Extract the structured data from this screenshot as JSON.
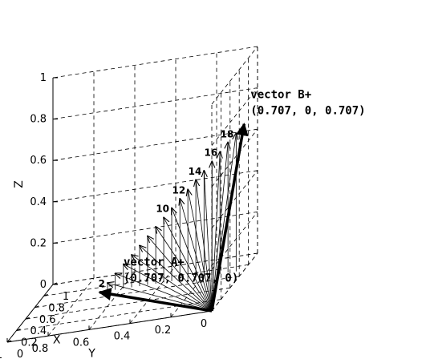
{
  "chart_data": {
    "type": "3d-vector",
    "title": "",
    "axes": {
      "x": {
        "label": "X",
        "range": [
          0,
          1
        ],
        "ticks": [
          "0",
          "0.2",
          "0.4",
          "0.6",
          "0.8",
          "1"
        ],
        "reversed": true
      },
      "y": {
        "label": "Y",
        "range": [
          0,
          1
        ],
        "ticks": [
          "0",
          "0.2",
          "0.4",
          "0.6",
          "0.8",
          "1"
        ]
      },
      "z": {
        "label": "Z",
        "range": [
          0,
          1
        ],
        "ticks": [
          "0",
          "0.2",
          "0.4",
          "0.6",
          "0.8",
          "1"
        ]
      }
    },
    "grid": true,
    "origin": [
      0,
      0,
      0
    ],
    "vectors": [
      {
        "name": "vector A+",
        "label": "(0.707, 0.707, 0)",
        "components": [
          0.707,
          0.707,
          0
        ]
      },
      {
        "name": "vector B+",
        "label": "(0.707, 0, 0.707)",
        "components": [
          0.707,
          0,
          0.707
        ]
      }
    ],
    "intermediate_vectors": [
      {
        "index": "2",
        "components": [
          0.707,
          0.668,
          0.039
        ]
      },
      {
        "index": "",
        "components": [
          0.707,
          0.63,
          0.079
        ]
      },
      {
        "index": "",
        "components": [
          0.707,
          0.59,
          0.118
        ]
      },
      {
        "index": "",
        "components": [
          0.707,
          0.55,
          0.157
        ]
      },
      {
        "index": "",
        "components": [
          0.707,
          0.511,
          0.196
        ]
      },
      {
        "index": "",
        "components": [
          0.707,
          0.472,
          0.236
        ]
      },
      {
        "index": "",
        "components": [
          0.707,
          0.432,
          0.275
        ]
      },
      {
        "index": "",
        "components": [
          0.707,
          0.393,
          0.314
        ]
      },
      {
        "index": "10",
        "components": [
          0.707,
          0.354,
          0.354
        ]
      },
      {
        "index": "",
        "components": [
          0.707,
          0.314,
          0.393
        ]
      },
      {
        "index": "12",
        "components": [
          0.707,
          0.275,
          0.432
        ]
      },
      {
        "index": "",
        "components": [
          0.707,
          0.236,
          0.472
        ]
      },
      {
        "index": "14",
        "components": [
          0.707,
          0.196,
          0.511
        ]
      },
      {
        "index": "",
        "components": [
          0.707,
          0.157,
          0.55
        ]
      },
      {
        "index": "16",
        "components": [
          0.707,
          0.118,
          0.59
        ]
      },
      {
        "index": "",
        "components": [
          0.707,
          0.079,
          0.63
        ]
      },
      {
        "index": "18",
        "components": [
          0.707,
          0.039,
          0.668
        ]
      }
    ]
  }
}
